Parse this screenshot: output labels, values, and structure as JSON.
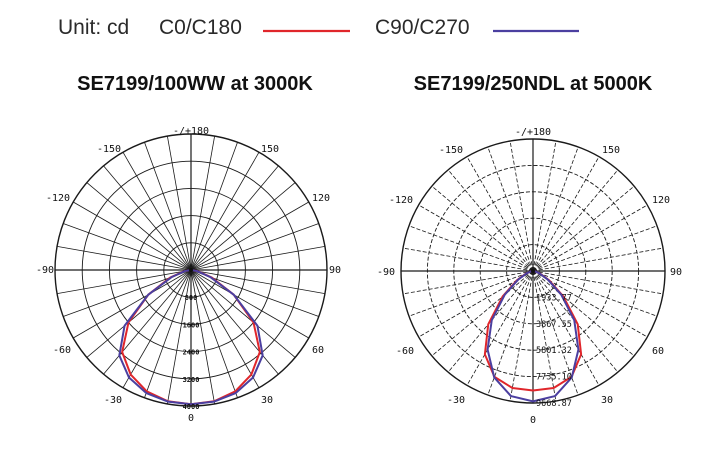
{
  "legend": {
    "unit_label": "Unit: cd",
    "c0_label": "C0/C180",
    "c90_label": "C90/C270",
    "c0_color": "#e0262b",
    "c90_color": "#4b3fa0"
  },
  "chart_data": [
    {
      "type": "polar",
      "title": "SE7199/100WW at 3000K",
      "grid_style": "solid",
      "angle_labels": [
        "-/+180",
        "150",
        "120",
        "90",
        "60",
        "30",
        "0",
        "-30",
        "-60",
        "-90",
        "-120",
        "-150"
      ],
      "radial_ticks": [
        800,
        1600,
        2400,
        3200,
        4000
      ],
      "radial_tick_labels": [
        "800",
        "1600",
        "2400",
        "3200",
        "4000"
      ],
      "rmax": 4000,
      "series": [
        {
          "name": "C0/C180",
          "angles_deg": [
            0,
            10,
            20,
            30,
            40,
            50,
            60,
            70,
            80,
            90
          ],
          "values": [
            3950,
            3920,
            3800,
            3550,
            3150,
            2400,
            1450,
            650,
            200,
            0
          ]
        },
        {
          "name": "C90/C270",
          "angles_deg": [
            0,
            10,
            20,
            30,
            40,
            50,
            60,
            70,
            80,
            90
          ],
          "values": [
            3950,
            3930,
            3850,
            3650,
            3280,
            2550,
            1450,
            600,
            180,
            0
          ]
        }
      ]
    },
    {
      "type": "polar",
      "title": "SE7199/250NDL at 5000K",
      "grid_style": "dashed",
      "angle_labels": [
        "-/+180",
        "150",
        "120",
        "90",
        "60",
        "30",
        "0",
        "-30",
        "-60",
        "-90",
        "-120",
        "-150"
      ],
      "radial_ticks": [
        1933.77,
        3867.55,
        5801.32,
        7735.1,
        9668.87
      ],
      "radial_tick_labels": [
        "1933.77",
        "3867.55",
        "5801.32",
        "7735.10",
        "9668.87"
      ],
      "rmax": 9668.87,
      "series": [
        {
          "name": "C0/C180",
          "angles_deg": [
            0,
            10,
            20,
            30,
            40,
            50,
            60,
            70,
            80,
            90
          ],
          "values": [
            8750,
            8700,
            8250,
            7050,
            5100,
            2900,
            1350,
            550,
            150,
            0
          ]
        },
        {
          "name": "C90/C270",
          "angles_deg": [
            0,
            10,
            20,
            30,
            40,
            50,
            60,
            70,
            80,
            90
          ],
          "values": [
            9550,
            9300,
            8300,
            6650,
            4700,
            2700,
            1250,
            500,
            150,
            0
          ]
        }
      ]
    }
  ]
}
